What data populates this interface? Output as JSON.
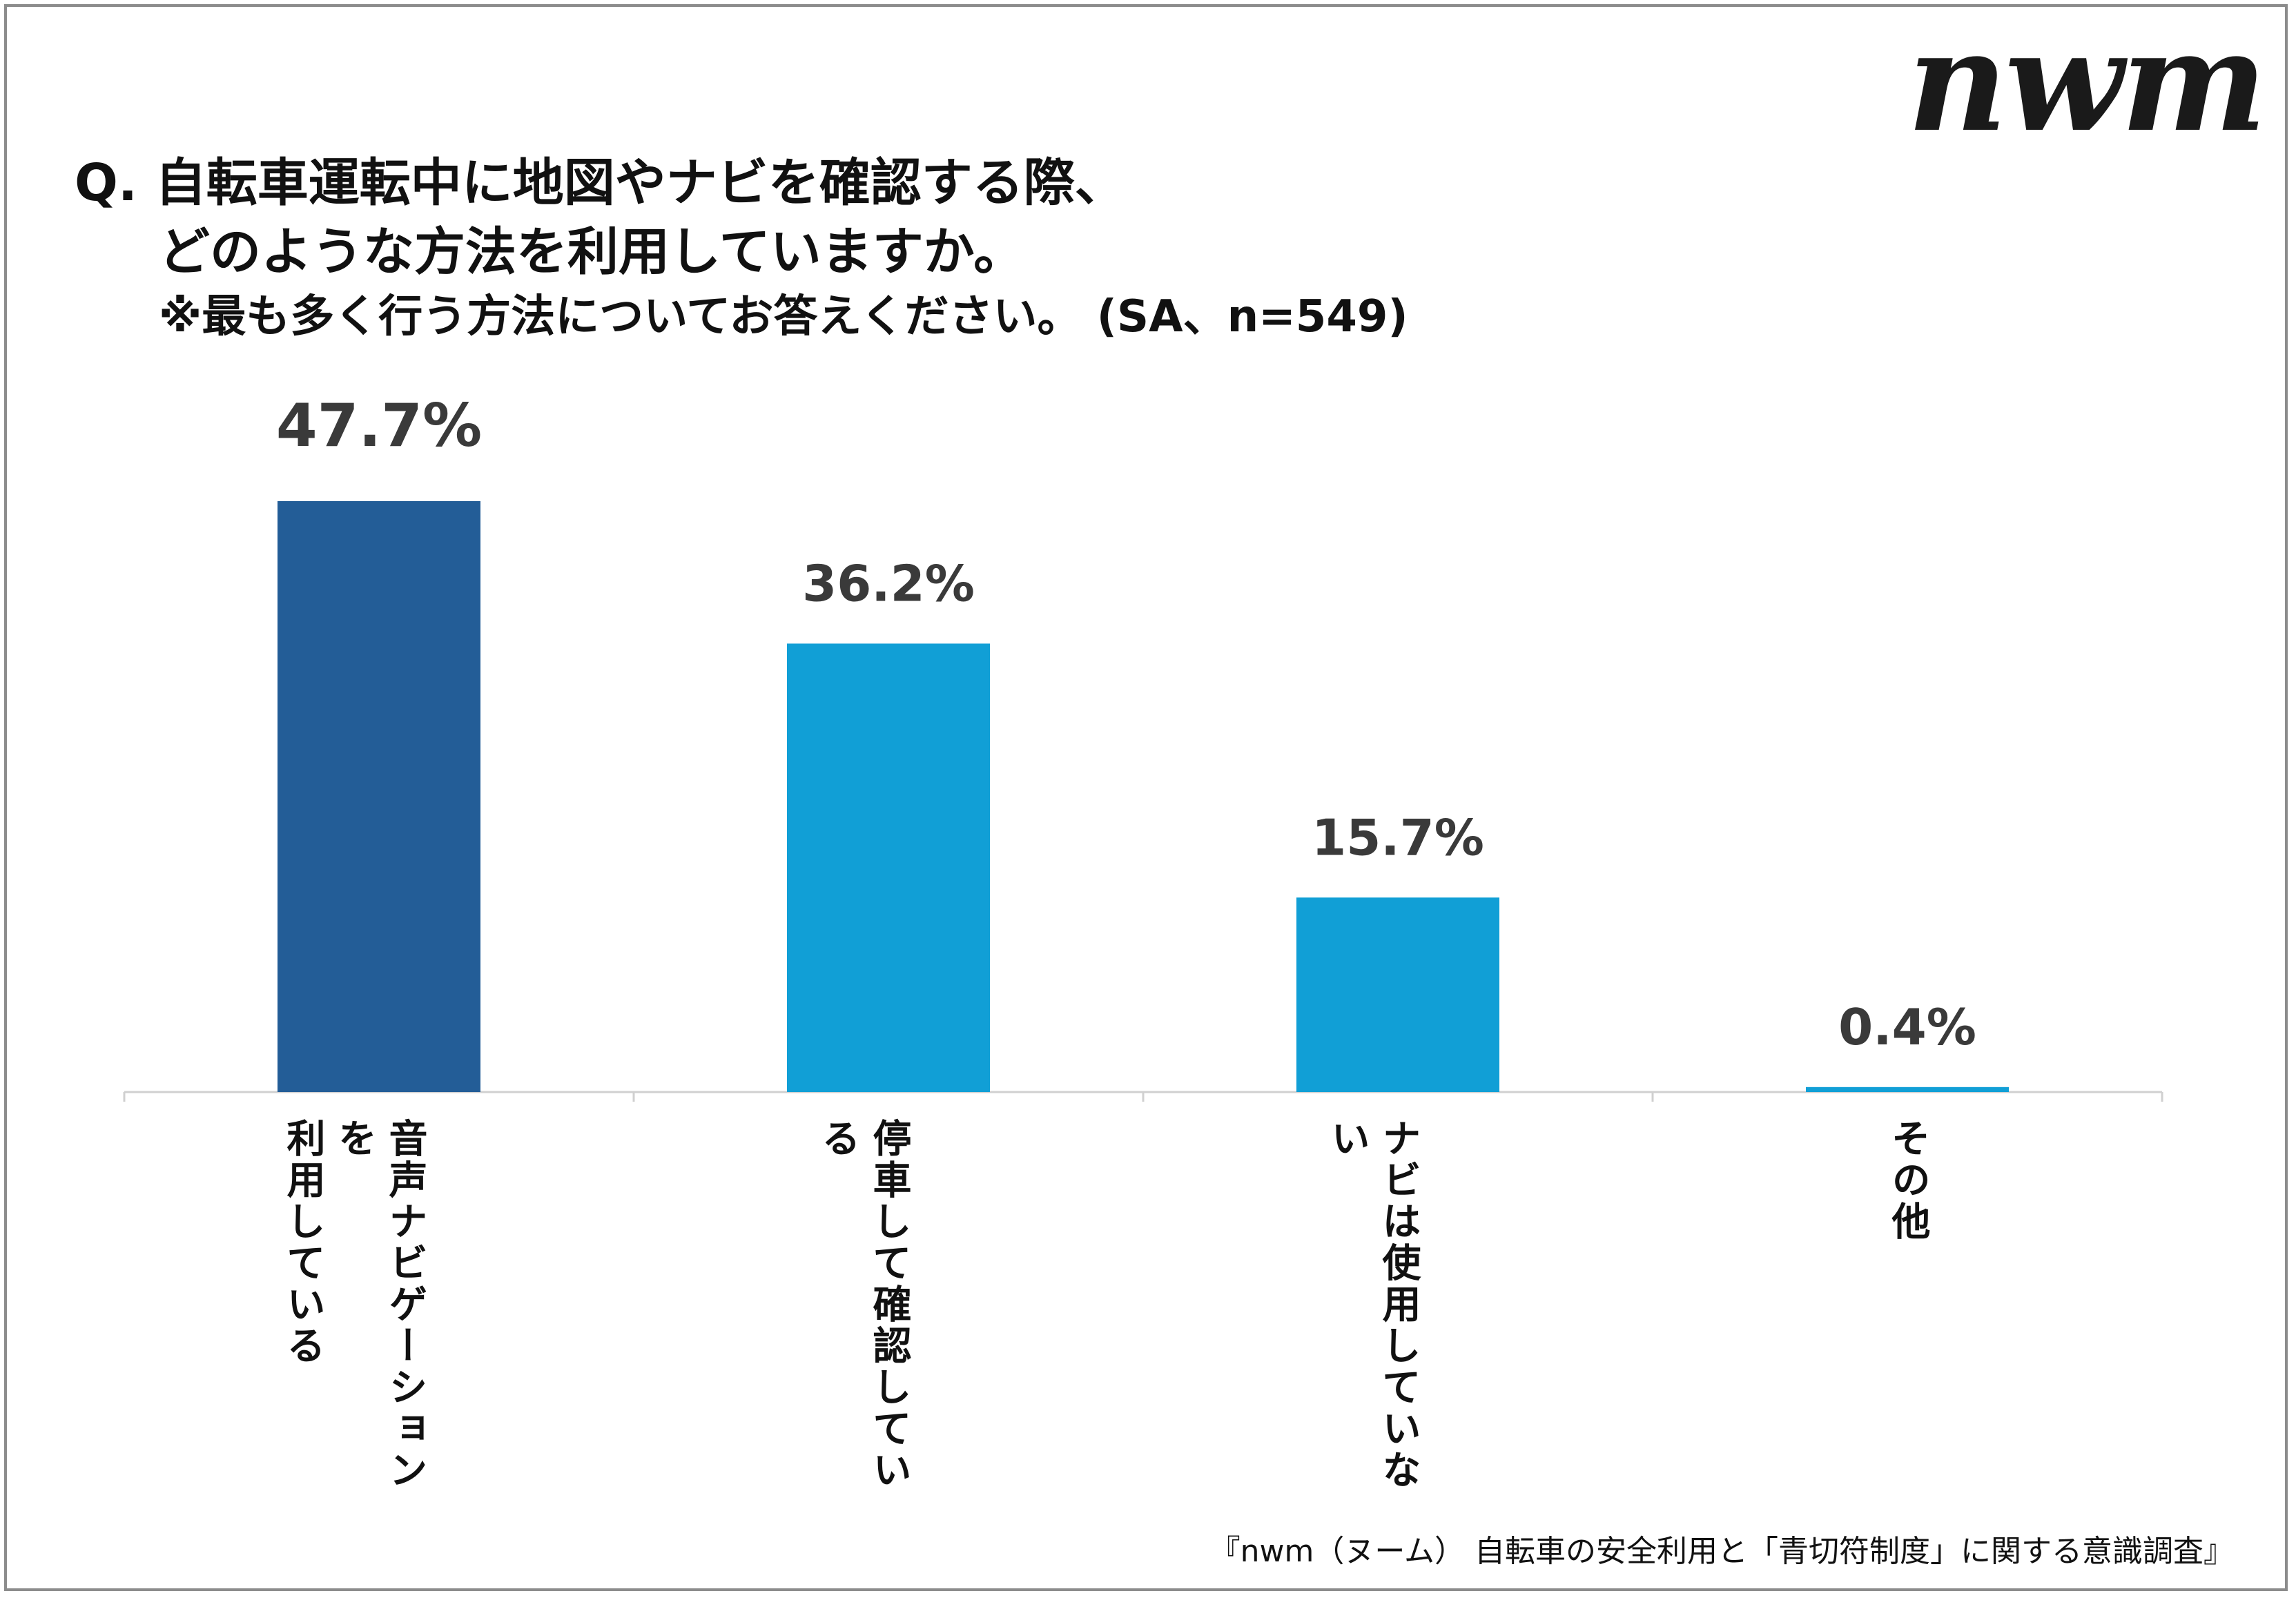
{
  "logo_text": "nwm",
  "title": {
    "line1": "Q. 自転車運転中に地図やナビを確認する際、",
    "line2": "どのような方法を利用していますか。"
  },
  "subtitle": "※最も多く行う方法についてお答えください。 (SA、n=549)",
  "footnote": "『nwm（ヌーム） 自転車の安全利用と「青切符制度」に関する意識調査』",
  "colors": {
    "primary_bar": "#235d97",
    "secondary_bar": "#119fd6",
    "axis": "#d0d0d0",
    "value_label": "#3a3a3a"
  },
  "chart_data": {
    "type": "bar",
    "categories": [
      "音声ナビゲーションを利用している",
      "停車して確認している",
      "ナビは使用していない",
      "その他"
    ],
    "category_lines": [
      [
        "音声ナビゲーションを",
        "利用している"
      ],
      [
        "停車して確認している"
      ],
      [
        "ナビは使用していない"
      ],
      [
        "その他"
      ]
    ],
    "values": [
      47.7,
      36.2,
      15.7,
      0.4
    ],
    "value_labels": [
      "47.7%",
      "36.2%",
      "15.7%",
      "0.4%"
    ],
    "unit": "%",
    "ylim": [
      0,
      50
    ],
    "highlight_index": 0,
    "grid": false,
    "legend": "none"
  }
}
